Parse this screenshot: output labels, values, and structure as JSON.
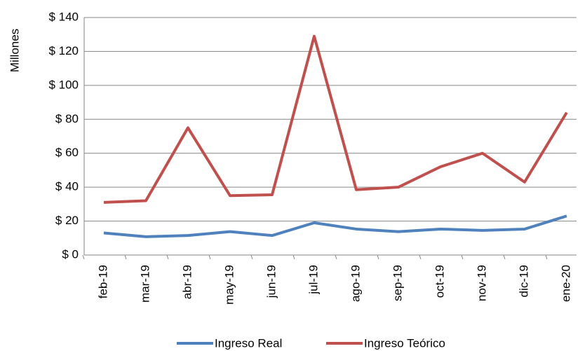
{
  "chart_data": {
    "type": "line",
    "y_label": "Millones",
    "categories": [
      "feb-19",
      "mar-19",
      "abr-19",
      "may-19",
      "jun-19",
      "jul-19",
      "ago-19",
      "sep-19",
      "oct-19",
      "nov-19",
      "dic-19",
      "ene-20"
    ],
    "series": [
      {
        "name": "Ingreso Real",
        "color": "#4f81bd",
        "values": [
          13,
          10.8,
          11.5,
          13.8,
          11.5,
          19,
          15.3,
          13.8,
          15.3,
          14.5,
          15.3,
          23
        ]
      },
      {
        "name": "Ingreso Teórico",
        "color": "#c0504d",
        "values": [
          31,
          32,
          75,
          35,
          35.5,
          129,
          38.5,
          40,
          52,
          60,
          43,
          84
        ]
      }
    ],
    "ylim": [
      0,
      140
    ],
    "yticks": [
      {
        "value": 0,
        "label": "$ 0"
      },
      {
        "value": 20,
        "label": "$ 20"
      },
      {
        "value": 40,
        "label": "$ 40"
      },
      {
        "value": 60,
        "label": "$ 60"
      },
      {
        "value": 80,
        "label": "$ 80"
      },
      {
        "value": 100,
        "label": "$ 100"
      },
      {
        "value": 120,
        "label": "$ 120"
      },
      {
        "value": 140,
        "label": "$ 140"
      }
    ],
    "grid": true,
    "legend": "bottom"
  }
}
